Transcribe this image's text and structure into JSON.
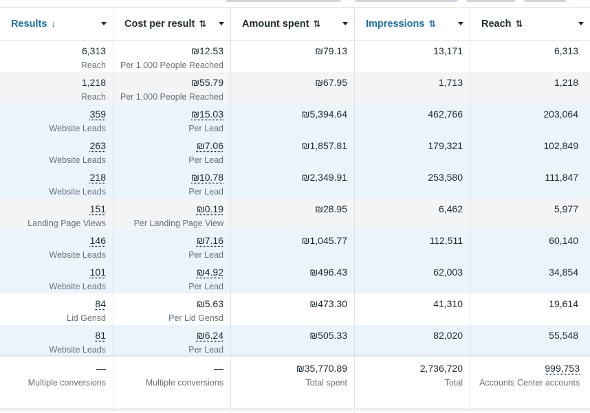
{
  "columns": [
    {
      "label": "Results",
      "sort": "↓",
      "highlighted": true
    },
    {
      "label": "Cost per result",
      "sort": "⇅",
      "highlighted": false
    },
    {
      "label": "Amount spent",
      "sort": "⇅",
      "highlighted": false
    },
    {
      "label": "Impressions",
      "sort": "⇅",
      "highlighted": true
    },
    {
      "label": "Reach",
      "sort": "⇅",
      "highlighted": false
    }
  ],
  "rows": [
    {
      "bg": "white",
      "results": {
        "value": "6,313",
        "sub": "Reach",
        "link": false
      },
      "cost": {
        "value": "₪12.53",
        "sub": "Per 1,000 People Reached",
        "link": false
      },
      "spent": "₪79.13",
      "impressions": "13,171",
      "reach": "6,313"
    },
    {
      "bg": "grey",
      "results": {
        "value": "1,218",
        "sub": "Reach",
        "link": false
      },
      "cost": {
        "value": "₪55.79",
        "sub": "Per 1,000 People Reached",
        "link": false
      },
      "spent": "₪67.95",
      "impressions": "1,713",
      "reach": "1,218"
    },
    {
      "bg": "blue",
      "results": {
        "value": "359",
        "sub": "Website Leads",
        "link": true
      },
      "cost": {
        "value": "₪15.03",
        "sub": "Per Lead",
        "link": true
      },
      "spent": "₪5,394.64",
      "impressions": "462,766",
      "reach": "203,064"
    },
    {
      "bg": "blue",
      "results": {
        "value": "263",
        "sub": "Website Leads",
        "link": true
      },
      "cost": {
        "value": "₪7.06",
        "sub": "Per Lead",
        "link": true
      },
      "spent": "₪1,857.81",
      "impressions": "179,321",
      "reach": "102,849"
    },
    {
      "bg": "blue",
      "results": {
        "value": "218",
        "sub": "Website Leads",
        "link": true
      },
      "cost": {
        "value": "₪10.78",
        "sub": "Per Lead",
        "link": true
      },
      "spent": "₪2,349.91",
      "impressions": "253,580",
      "reach": "111,847"
    },
    {
      "bg": "grey",
      "results": {
        "value": "151",
        "sub": "Landing Page Views",
        "link": true
      },
      "cost": {
        "value": "₪0.19",
        "sub": "Per Landing Page View",
        "link": true
      },
      "spent": "₪28.95",
      "impressions": "6,462",
      "reach": "5,977"
    },
    {
      "bg": "blue",
      "results": {
        "value": "146",
        "sub": "Website Leads",
        "link": true
      },
      "cost": {
        "value": "₪7.16",
        "sub": "Per Lead",
        "link": true
      },
      "spent": "₪1,045.77",
      "impressions": "112,511",
      "reach": "60,140"
    },
    {
      "bg": "blue",
      "results": {
        "value": "101",
        "sub": "Website Leads",
        "link": true
      },
      "cost": {
        "value": "₪4.92",
        "sub": "Per Lead",
        "link": true
      },
      "spent": "₪496.43",
      "impressions": "62,003",
      "reach": "34,854"
    },
    {
      "bg": "white",
      "results": {
        "value": "84",
        "sub": "Lid Gensd",
        "link": true
      },
      "cost": {
        "value": "₪5.63",
        "sub": "Per Lid Gensd",
        "link": false
      },
      "spent": "₪473.30",
      "impressions": "41,310",
      "reach": "19,614"
    },
    {
      "bg": "blue",
      "results": {
        "value": "81",
        "sub": "Website Leads",
        "link": true
      },
      "cost": {
        "value": "₪6.24",
        "sub": "Per Lead",
        "link": true
      },
      "spent": "₪505.33",
      "impressions": "82,020",
      "reach": "55,548"
    }
  ],
  "totals": {
    "results": {
      "value": "—",
      "sub": "Multiple conversions"
    },
    "cost": {
      "value": "—",
      "sub": "Multiple conversions"
    },
    "spent": {
      "value": "₪35,770.89",
      "sub": "Total spent"
    },
    "impressions": {
      "value": "2,736,720",
      "sub": "Total"
    },
    "reach": {
      "value": "999,753",
      "sub": "Accounts Center accounts",
      "link": true
    }
  },
  "colors": {
    "accent": "#1e6fa8",
    "row_blue": "#ebf3fb",
    "row_grey": "#f3f4f6",
    "text": "#1c2b33",
    "subtext": "#65717b"
  }
}
